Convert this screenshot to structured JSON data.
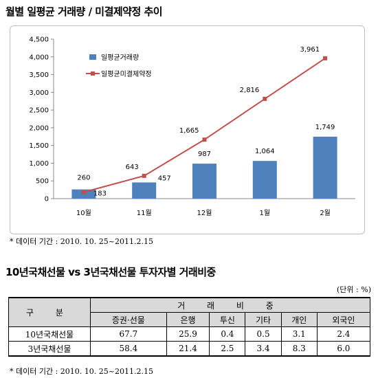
{
  "title1": "월별 일평균 거래량 / 미결제약정 추이",
  "title2": "10년국채선물 vs 3년국채선물 투자자별 거래비중",
  "note1": "* 데이터 기간 : 2010. 10. 25~2011.2.15",
  "note2": "* 데이터 기간 : 2010. 10. 25~2011.2.15",
  "unit_label": "(단위 : %)",
  "colors": {
    "bar": "#4f81bd",
    "line": "#c0504d"
  },
  "chart_data": {
    "type": "bar",
    "categories": [
      "10월",
      "11월",
      "12월",
      "1월",
      "2월"
    ],
    "series": [
      {
        "name": "일평균거래량",
        "type": "bar",
        "values": [
          260,
          457,
          987,
          1064,
          1749
        ],
        "labels": [
          "260",
          "457",
          "987",
          "1,064",
          "1,749"
        ]
      },
      {
        "name": "일평균미결제약정",
        "type": "line",
        "values": [
          183,
          643,
          1665,
          2816,
          3961
        ],
        "labels": [
          "183",
          "643",
          "1,665",
          "2,816",
          "3,961"
        ]
      }
    ],
    "yticks": [
      "0",
      "500",
      "1,000",
      "1,500",
      "2,000",
      "2,500",
      "3,000",
      "3,500",
      "4,000",
      "4,500"
    ],
    "ylim": [
      0,
      4500
    ],
    "grid": false,
    "legend": "top-left"
  },
  "table": {
    "header_col": "구 분",
    "group_header": "거 래 비 중",
    "columns": [
      "증권·선물",
      "은행",
      "투신",
      "기타",
      "개인",
      "외국인"
    ],
    "rows": [
      {
        "label": "10년국채선물",
        "values": [
          "67.7",
          "25.9",
          "0.4",
          "0.5",
          "3.1",
          "2.4"
        ]
      },
      {
        "label": "3년국채선물",
        "values": [
          "58.4",
          "21.4",
          "2.5",
          "3.4",
          "8.3",
          "6.0"
        ]
      }
    ]
  }
}
